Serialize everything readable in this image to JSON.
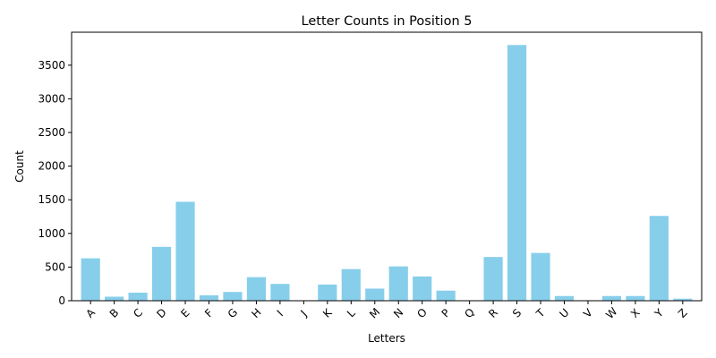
{
  "chart_data": {
    "type": "bar",
    "title": "Letter Counts in Position 5",
    "xlabel": "Letters",
    "ylabel": "Count",
    "categories": [
      "A",
      "B",
      "C",
      "D",
      "E",
      "F",
      "G",
      "H",
      "I",
      "J",
      "K",
      "L",
      "M",
      "N",
      "O",
      "P",
      "Q",
      "R",
      "S",
      "T",
      "U",
      "V",
      "W",
      "X",
      "Y",
      "Z"
    ],
    "values": [
      630,
      60,
      120,
      800,
      1470,
      80,
      130,
      350,
      250,
      0,
      240,
      470,
      180,
      510,
      360,
      150,
      0,
      650,
      3800,
      710,
      70,
      0,
      70,
      70,
      1260,
      30
    ],
    "ylim": [
      0,
      3990
    ],
    "yticks": [
      0,
      500,
      1000,
      1500,
      2000,
      2500,
      3000,
      3500
    ],
    "bar_color": "#87ceeb",
    "grid": false,
    "legend": false
  }
}
